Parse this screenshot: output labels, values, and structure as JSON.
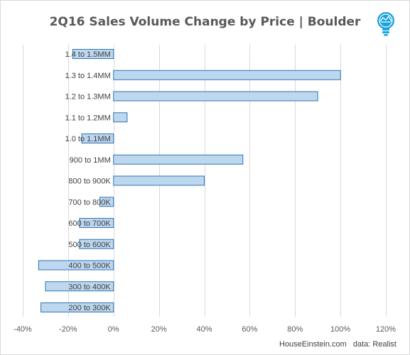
{
  "chart_data": {
    "type": "bar",
    "orientation": "horizontal",
    "title": "2Q16 Sales Volume Change by Price | Boulder",
    "categories": [
      "1.4 to 1.5MM",
      "1.3 to 1.4MM",
      "1.2 to 1.3MM",
      "1.1 to 1.2MM",
      "1.0 to 1.1MM",
      "900 to 1MM",
      "800 to 900K",
      "700 to 800K",
      "600 to 700K",
      "500 to 600K",
      "400 to 500K",
      "300 to 400K",
      "200 to 300K"
    ],
    "values": [
      -18,
      100,
      90,
      6,
      -14,
      57,
      40,
      -6,
      -15,
      -15,
      -33,
      -30,
      -32
    ],
    "value_format": "percent",
    "xlim": [
      -40,
      120
    ],
    "xticks": [
      -40,
      -20,
      0,
      20,
      40,
      60,
      80,
      100,
      120
    ],
    "xtick_labels": [
      "-40%",
      "-20%",
      "0%",
      "20%",
      "40%",
      "60%",
      "80%",
      "100%",
      "120%"
    ],
    "grid": true,
    "colors": {
      "bar_fill": "#bdd7ee",
      "bar_edge": "#2e75b6",
      "logo": "#1aa3dd"
    }
  },
  "footer": {
    "site": "HouseEinstein.com",
    "source": "data: Realist"
  },
  "logo": {
    "icon": "lightbulb-logo-icon"
  }
}
